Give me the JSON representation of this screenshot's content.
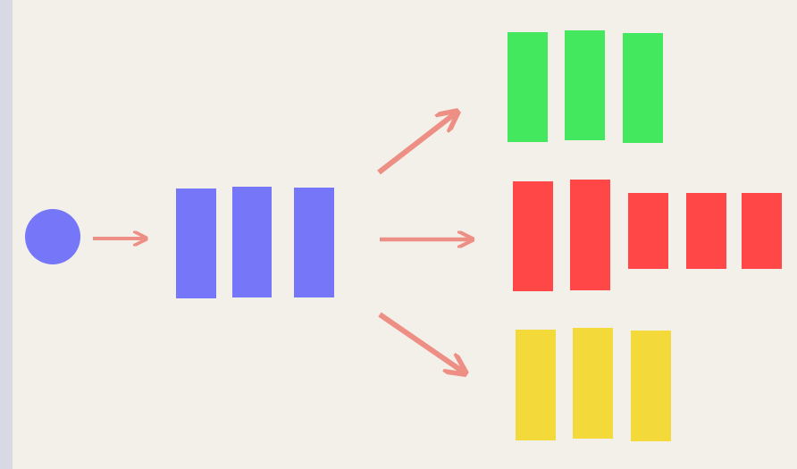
{
  "colors": {
    "background": "#f3efe9",
    "frame": "#d9d9e6",
    "source": "#7576f8",
    "stage": "#7576f8",
    "branch_top": "#44e85f",
    "branch_middle": "#ff4747",
    "branch_bottom": "#f3d93a",
    "arrow": "#ee8f86"
  },
  "diagram": {
    "source": {
      "shape": "circle"
    },
    "stage": {
      "bar_count": 3
    },
    "branches": [
      {
        "name": "top",
        "bar_count": 3
      },
      {
        "name": "middle",
        "bar_count": 5
      },
      {
        "name": "bottom",
        "bar_count": 3
      }
    ],
    "arrow_count": 4
  }
}
